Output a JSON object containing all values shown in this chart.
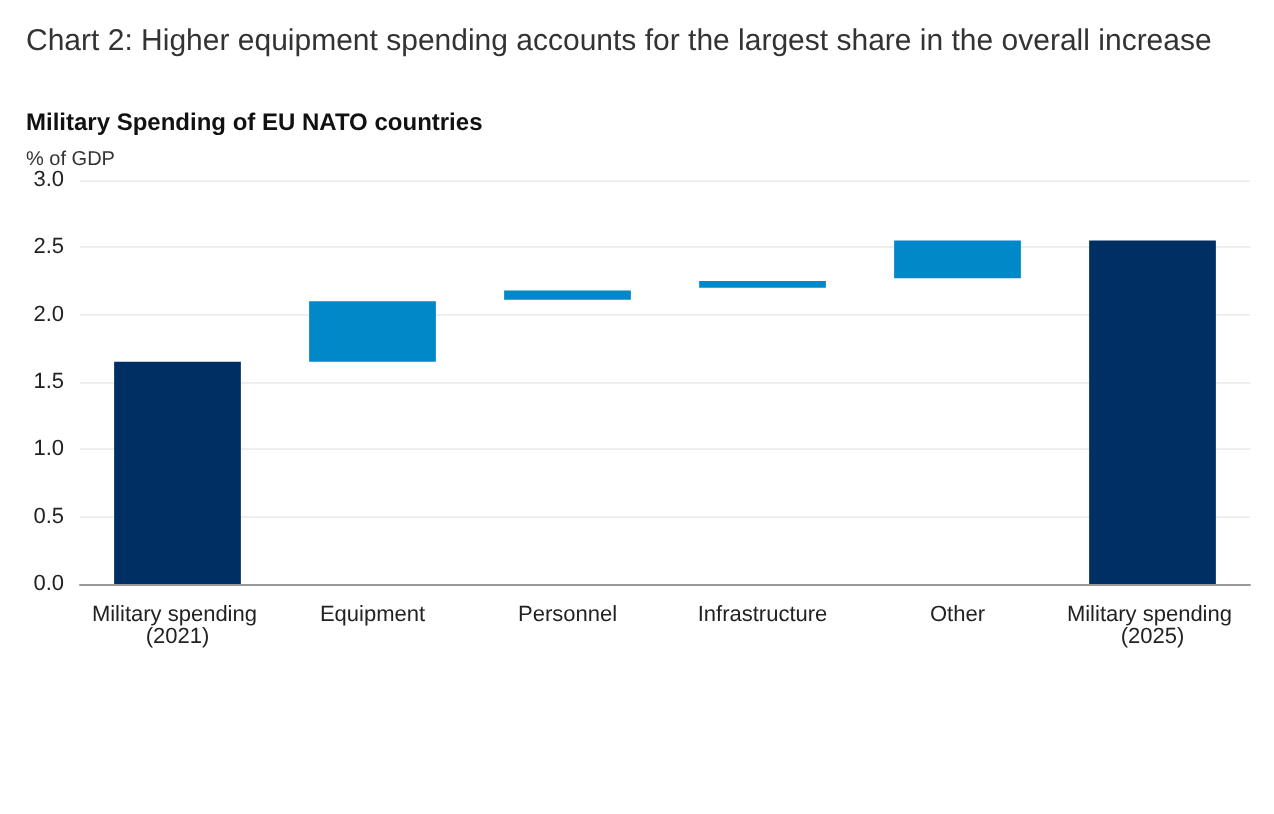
{
  "chart_data": {
    "type": "bar",
    "title": "Chart 2: Higher equipment spending accounts for the largest share in the overall increase",
    "subtitle": "Military Spending of EU NATO countries",
    "ylabel": "% of GDP",
    "categories": [
      "Military spending (2021)",
      "Equipment",
      "Personnel",
      "Infrastructure",
      "Other",
      "Military spending (2025)"
    ],
    "values": [
      1.65,
      0.45,
      0.07,
      0.05,
      0.28,
      2.55
    ],
    "base": [
      0,
      1.65,
      2.11,
      2.2,
      2.27,
      0
    ],
    "colors": [
      "#003063",
      "#0088c8",
      "#0088c8",
      "#0088c8",
      "#0088c8",
      "#003063"
    ],
    "ylim": [
      0,
      3
    ],
    "yticks": [
      {
        "value": 0,
        "label": "0.0"
      },
      {
        "value": 0.5,
        "label": "0.5"
      },
      {
        "value": 1,
        "label": "1.0"
      },
      {
        "value": 1.5,
        "label": "1.5"
      },
      {
        "value": 2,
        "label": "2.0"
      },
      {
        "value": 2.5,
        "label": "2.5"
      },
      {
        "value": 3,
        "label": "3.0"
      }
    ],
    "grid": "y"
  }
}
